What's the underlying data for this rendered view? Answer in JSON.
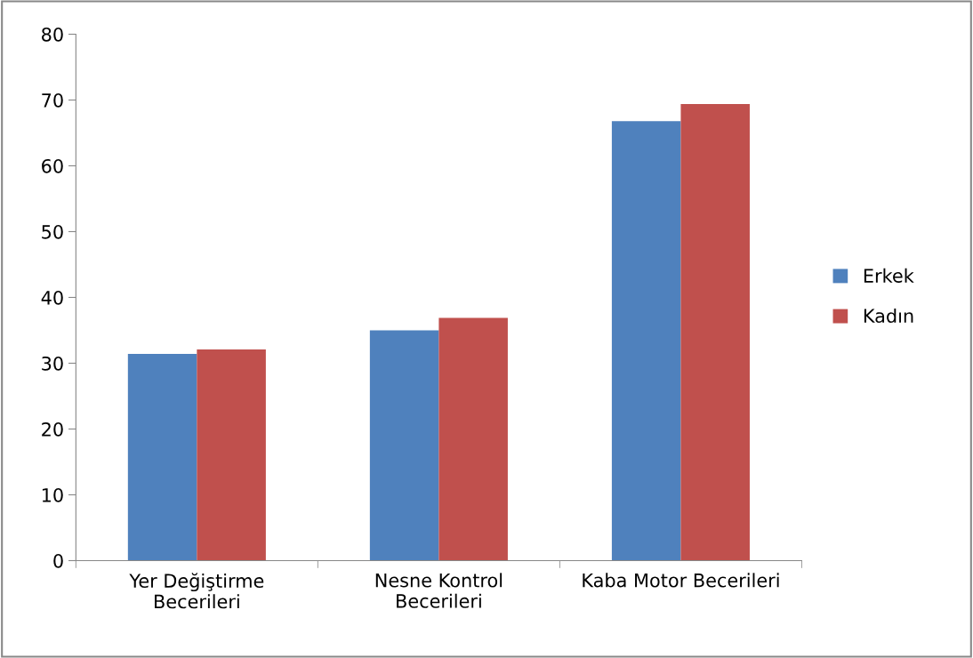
{
  "chart_data": {
    "type": "bar",
    "categories": [
      "Yer Değiştirme\nBecerileri",
      "Nesne Kontrol\nBecerileri",
      "Kaba Motor Becerileri"
    ],
    "series": [
      {
        "name": "Erkek",
        "color": "#4f81bd",
        "values": [
          31.4,
          35.0,
          66.8
        ]
      },
      {
        "name": "Kadın",
        "color": "#c0504d",
        "values": [
          32.1,
          36.9,
          69.4
        ]
      }
    ],
    "ylim": [
      0,
      80
    ],
    "yticks": [
      0,
      10,
      20,
      30,
      40,
      50,
      60,
      70,
      80
    ],
    "grid": false,
    "legend": "right"
  }
}
